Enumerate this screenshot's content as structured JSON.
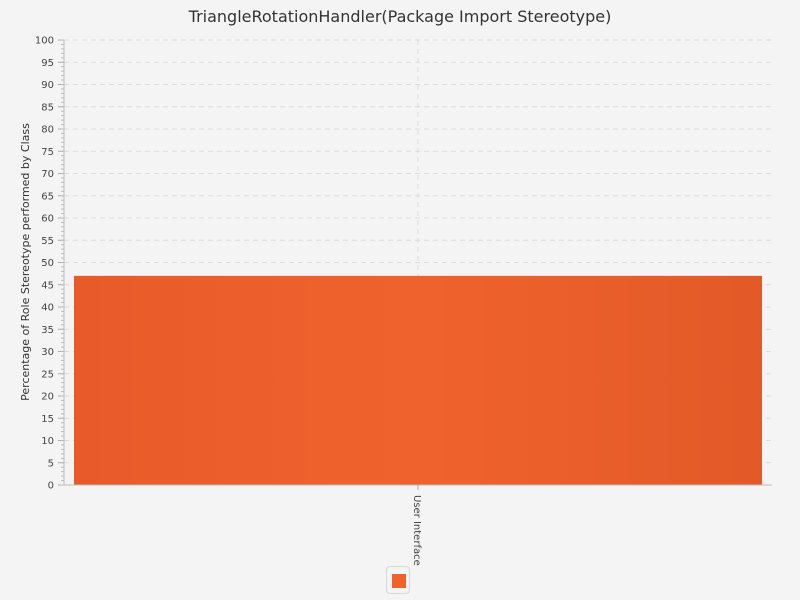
{
  "chart_data": {
    "type": "bar",
    "title": "TriangleRotationHandler(Package Import Stereotype)",
    "xlabel": "",
    "ylabel": "Percentage of Role Stereotype performed by Class",
    "categories": [
      "User Interface"
    ],
    "series": [
      {
        "values": [
          47
        ],
        "color": "#f0622d"
      }
    ],
    "ylim": [
      0,
      100
    ],
    "ytick_step": 5,
    "grid": true,
    "legend": "bottom-center"
  },
  "colors": {
    "background": "#f4f4f4",
    "bar": "#f0622d",
    "grid": "#dcdcdc"
  }
}
